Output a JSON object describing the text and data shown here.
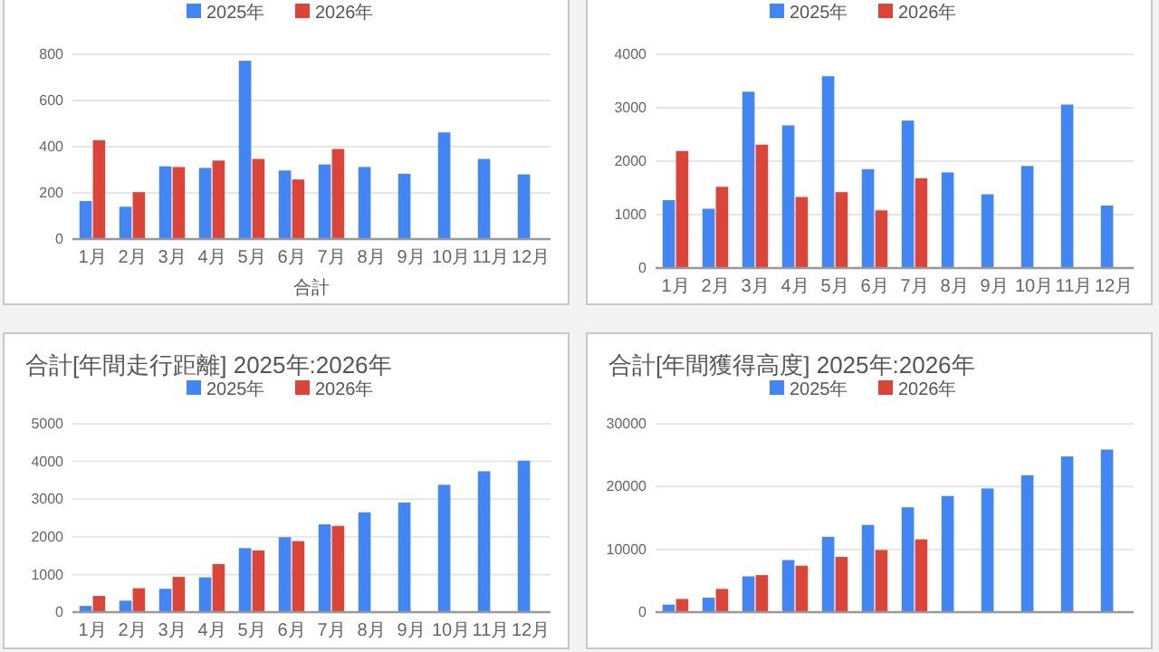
{
  "chart_data": [
    {
      "type": "bar",
      "xlabel": "合計",
      "categories": [
        "1月",
        "2月",
        "3月",
        "4月",
        "5月",
        "6月",
        "7月",
        "8月",
        "9月",
        "10月",
        "11月",
        "12月"
      ],
      "ylim": [
        0,
        800
      ],
      "yticks": [
        0,
        200,
        400,
        600,
        800
      ],
      "grid": "y",
      "legend": "top",
      "series": [
        {
          "name": "2025年",
          "color": "#4285f4",
          "values": [
            165,
            140,
            315,
            308,
            772,
            297,
            323,
            312,
            283,
            462,
            347,
            280
          ]
        },
        {
          "name": "2026年",
          "color": "#db4437",
          "values": [
            428,
            203,
            312,
            340,
            347,
            258,
            390,
            null,
            null,
            null,
            null,
            null
          ]
        }
      ]
    },
    {
      "type": "bar",
      "categories": [
        "1月",
        "2月",
        "3月",
        "4月",
        "5月",
        "6月",
        "7月",
        "8月",
        "9月",
        "10月",
        "11月",
        "12月"
      ],
      "ylim": [
        0,
        4000
      ],
      "yticks": [
        0,
        1000,
        2000,
        3000,
        4000
      ],
      "grid": "y",
      "legend": "top",
      "series": [
        {
          "name": "2025年",
          "color": "#4285f4",
          "values": [
            1270,
            1110,
            3300,
            2670,
            3590,
            1850,
            2760,
            1790,
            1380,
            1910,
            3060,
            1170
          ]
        },
        {
          "name": "2026年",
          "color": "#db4437",
          "values": [
            2190,
            1520,
            2310,
            1330,
            1420,
            1080,
            1680,
            null,
            null,
            null,
            null,
            null
          ]
        }
      ]
    },
    {
      "type": "bar",
      "title": "合計[年間走行距離] 2025年:2026年",
      "categories": [
        "1月",
        "2月",
        "3月",
        "4月",
        "5月",
        "6月",
        "7月",
        "8月",
        "9月",
        "10月",
        "11月",
        "12月"
      ],
      "ylim": [
        0,
        5000
      ],
      "yticks": [
        0,
        1000,
        2000,
        3000,
        4000,
        5000
      ],
      "grid": "y",
      "legend": "top",
      "series": [
        {
          "name": "2025年",
          "color": "#4285f4",
          "values": [
            165,
            305,
            620,
            925,
            1700,
            1990,
            2330,
            2650,
            2910,
            3380,
            3740,
            4020
          ]
        },
        {
          "name": "2026年",
          "color": "#db4437",
          "values": [
            430,
            635,
            935,
            1275,
            1640,
            1885,
            2290,
            null,
            null,
            null,
            null,
            null
          ]
        }
      ]
    },
    {
      "type": "bar",
      "title": "合計[年間獲得高度] 2025年:2026年",
      "categories": [
        null,
        null,
        null,
        null,
        null,
        null,
        null,
        null,
        null,
        null,
        null,
        null
      ],
      "ylim": [
        0,
        30000
      ],
      "yticks": [
        0,
        10000,
        20000,
        30000
      ],
      "grid": "y",
      "legend": "top",
      "series": [
        {
          "name": "2025年",
          "color": "#4285f4",
          "values": [
            1200,
            2300,
            5700,
            8300,
            12000,
            13900,
            16700,
            18500,
            19700,
            21800,
            24800,
            25900
          ]
        },
        {
          "name": "2026年",
          "color": "#db4437",
          "values": [
            2100,
            3700,
            5900,
            7400,
            8800,
            9900,
            11600,
            null,
            null,
            null,
            null,
            null
          ]
        }
      ]
    }
  ]
}
